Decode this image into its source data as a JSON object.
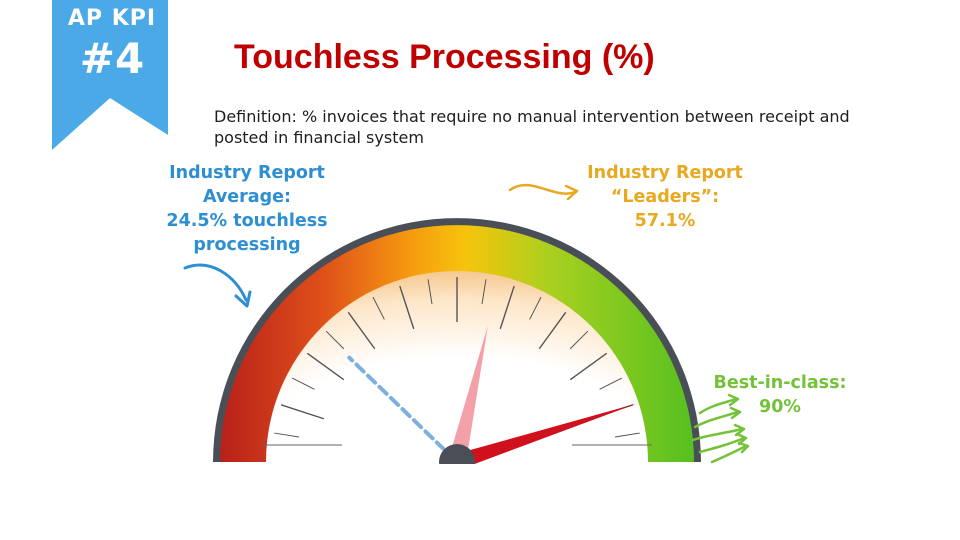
{
  "badge": {
    "line1": "AP KPI",
    "line2": "#4",
    "color": "#4aa9e6"
  },
  "title": "Touchless Processing (%)",
  "definition": "Definition: % invoices that require no manual intervention between receipt and posted in financial system",
  "callouts": {
    "average": {
      "lines": [
        "Industry Report",
        "Average:",
        "24.5% touchless",
        "processing"
      ],
      "color": "#2d8fd2"
    },
    "leaders": {
      "lines": [
        "Industry Report",
        "“Leaders”:",
        "57.1%"
      ],
      "color": "#e8a820"
    },
    "best": {
      "lines": [
        "Best-in-class:",
        "90%"
      ],
      "color": "#74c23a"
    }
  },
  "gauge": {
    "scale_min": 0,
    "scale_max": 100,
    "average_marker_pct": 24.5,
    "leaders_needle_pct": 57.1,
    "best_marker_pct": 90,
    "colors": {
      "red": "#c8281c",
      "orange": "#f08a10",
      "yellow": "#f4c20a",
      "green": "#6cc424",
      "hub": "#4a4f57",
      "needle": "#f4a0a8",
      "pointer": "#d0101c",
      "dashed": "#7fb0dc"
    }
  }
}
